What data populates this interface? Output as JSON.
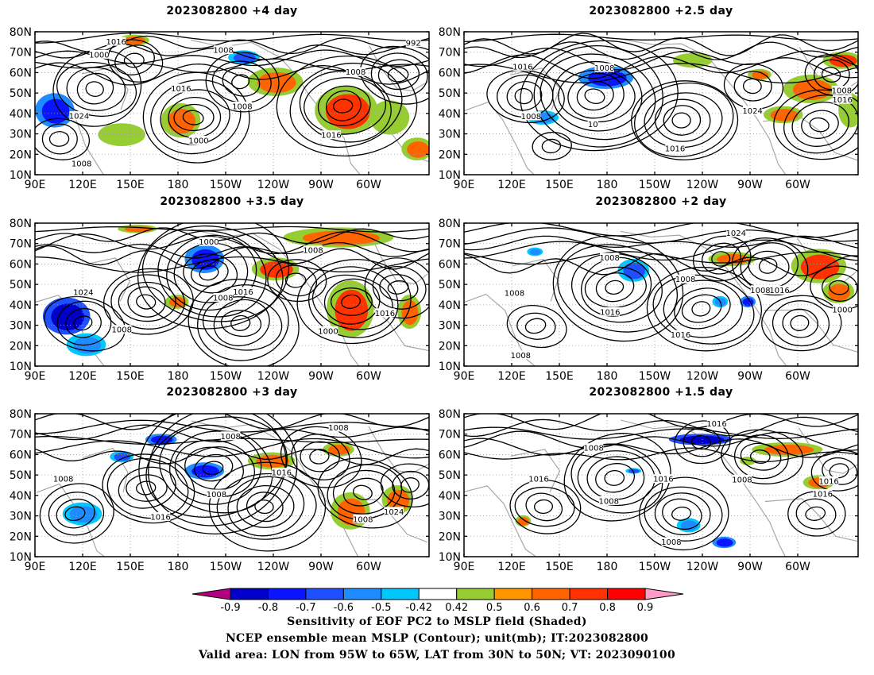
{
  "panels": [
    {
      "id": "p1",
      "title": "2023082800  +4 day",
      "contour_labels": [
        "1000",
        "1000",
        "1008",
        "1016",
        "992",
        "1008",
        "1016",
        "1024",
        "1016",
        "1008",
        "1008"
      ]
    },
    {
      "id": "p2",
      "title": "2023082800  +2.5  day",
      "contour_labels": [
        "1008",
        "1016",
        "1016",
        "1024",
        "1008",
        "1016",
        "1008",
        "10"
      ]
    },
    {
      "id": "p3",
      "title": "2023082800  +3.5  day",
      "contour_labels": [
        "1000",
        "1008",
        "1016",
        "1000",
        "1024",
        "1016",
        "1008",
        "1008"
      ]
    },
    {
      "id": "p4",
      "title": "2023082800  +2 day",
      "contour_labels": [
        "1008",
        "1016",
        "1008",
        "1008",
        "1016",
        "1000",
        "1024",
        "1016",
        "1008",
        "1008"
      ]
    },
    {
      "id": "p5",
      "title": "2023082800  +3 day",
      "contour_labels": [
        "1008",
        "1016",
        "1016",
        "1008",
        "1008",
        "1024",
        "1008",
        "1008"
      ]
    },
    {
      "id": "p6",
      "title": "2023082800  +1.5  day",
      "contour_labels": [
        "1008",
        "1008",
        "1016",
        "1008",
        "1016",
        "1016",
        "1016",
        "1008",
        "1016"
      ]
    }
  ],
  "axes": {
    "lat_ticks": [
      "80N",
      "70N",
      "60N",
      "50N",
      "40N",
      "30N",
      "20N",
      "10N"
    ],
    "lon_ticks": [
      "90E",
      "120E",
      "150E",
      "180",
      "150W",
      "120W",
      "90W",
      "60W"
    ]
  },
  "colorbar": {
    "colors": [
      "#b3007f",
      "#0000c8",
      "#0a14ff",
      "#1e50ff",
      "#1e8cff",
      "#00c8ff",
      "#ffffff",
      "#96cd32",
      "#ff9600",
      "#ff6400",
      "#ff3200",
      "#ff0000",
      "#ff9bc8"
    ],
    "labels": [
      "-0.9",
      "-0.8",
      "-0.7",
      "-0.6",
      "-0.5",
      "-0.42",
      "0.42",
      "0.5",
      "0.6",
      "0.7",
      "0.8",
      "0.9"
    ]
  },
  "caption": {
    "line1": "Sensitivity of EOF PC2 to MSLP field (Shaded)",
    "line2": "NCEP ensemble mean MSLP (Contour); unit(mb); IT:2023082800",
    "line3": "Valid area: LON from 95W to 65W, LAT from 30N to 50N; VT: 2023090100"
  }
}
